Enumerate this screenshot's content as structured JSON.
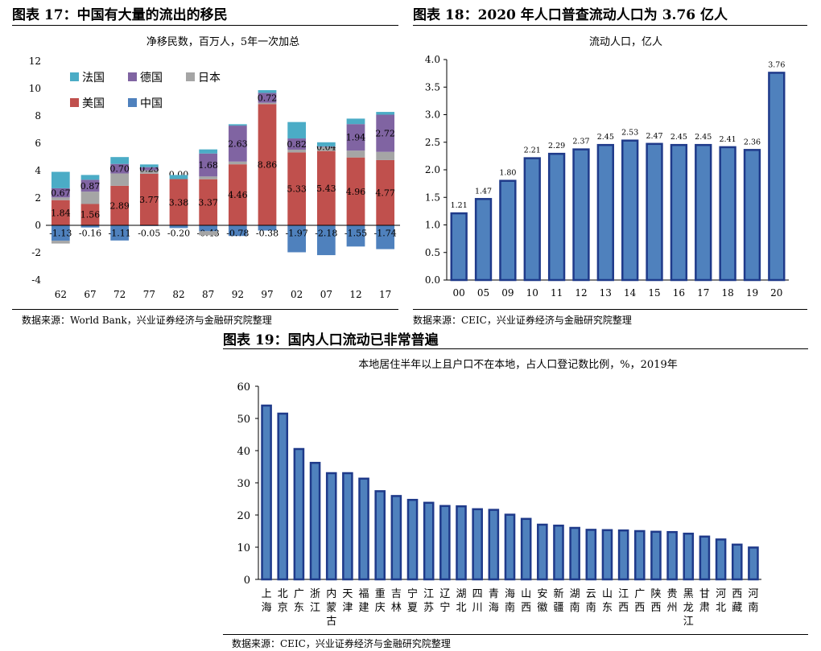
{
  "figure17": {
    "title": "图表 17：中国有大量的流出的移民",
    "source": "数据来源：World Bank，兴业证券经济与金融研究院整理"
  },
  "figure18": {
    "title": "图表 18：2020 年人口普查流动人口为 3.76 亿人",
    "source": "数据来源：CEIC，兴业证券经济与金融研究院整理"
  },
  "figure19": {
    "title": "图表 19：国内人口流动已非常普遍",
    "source": "数据来源：CEIC，兴业证券经济与金融研究院整理"
  },
  "colors": {
    "france": "#4BACC6",
    "germany": "#8064A2",
    "japan": "#A5A5A5",
    "usa": "#C0504D",
    "china": "#4F81BD",
    "bar_fill": "#4F81BD",
    "bar_edge": "#1F3A8A"
  },
  "chart_data": [
    {
      "type": "bar",
      "stacked": true,
      "title": "净移民数，百万人，5年一次加总",
      "categories": [
        "62",
        "67",
        "72",
        "77",
        "82",
        "87",
        "92",
        "97",
        "02",
        "07",
        "12",
        "17"
      ],
      "ylim": [
        -4,
        12
      ],
      "yticks": [
        -4,
        -2,
        0,
        2,
        4,
        6,
        8,
        10,
        12
      ],
      "legend_position": "top-left",
      "series": [
        {
          "name": "美国",
          "key": "usa",
          "values": [
            1.84,
            1.56,
            2.89,
            3.77,
            3.38,
            3.37,
            4.46,
            8.86,
            5.33,
            5.43,
            4.96,
            4.77
          ],
          "labels": [
            "1.84",
            "1.56",
            "2.89",
            "3.77",
            "3.38",
            "3.37",
            "4.46",
            "8.86",
            "5.33",
            "5.43",
            "4.96",
            "4.77"
          ]
        },
        {
          "name": "日本",
          "key": "japan",
          "values": [
            0.2,
            0.9,
            0.9,
            0.25,
            0.0,
            0.2,
            0.2,
            0.1,
            0.2,
            0.3,
            0.5,
            0.6
          ]
        },
        {
          "name": "德国",
          "key": "germany",
          "values": [
            0.67,
            0.87,
            0.7,
            0.23,
            0.0,
            1.68,
            2.63,
            0.72,
            0.82,
            0.04,
            1.94,
            2.72
          ],
          "labels": [
            "0.67",
            "0.87",
            "0.70",
            "0.23",
            "0.00",
            "1.68",
            "2.63",
            "0.72",
            "0.82",
            "0.04",
            "1.94",
            "2.72"
          ]
        },
        {
          "name": "法国",
          "key": "france",
          "values": [
            1.2,
            0.35,
            0.5,
            0.2,
            0.3,
            0.3,
            0.1,
            0.2,
            1.2,
            0.3,
            0.4,
            0.2
          ]
        },
        {
          "name": "中国",
          "key": "china",
          "values": [
            -1.13,
            -0.16,
            -1.11,
            -0.05,
            -0.2,
            -0.43,
            -0.78,
            -0.38,
            -1.97,
            -2.18,
            -1.55,
            -1.74
          ],
          "labels": [
            "-1.13",
            "-0.16",
            "-1.11",
            "-0.05",
            "-0.20",
            "-0.43",
            "-0.78",
            "-0.38",
            "-1.97",
            "-2.18",
            "-1.55",
            "-1.74"
          ]
        },
        {
          "name": "日本",
          "key": "japan_neg",
          "values": [
            -0.2,
            0,
            0,
            0,
            0,
            -0.3,
            0,
            0,
            0,
            0,
            0,
            0
          ]
        }
      ]
    },
    {
      "type": "bar",
      "title": "流动人口，亿人",
      "categories": [
        "00",
        "05",
        "09",
        "10",
        "11",
        "12",
        "13",
        "14",
        "15",
        "16",
        "17",
        "18",
        "19",
        "20"
      ],
      "values": [
        1.21,
        1.47,
        1.8,
        2.21,
        2.29,
        2.37,
        2.45,
        2.53,
        2.47,
        2.45,
        2.45,
        2.41,
        2.36,
        3.76
      ],
      "labels": [
        "1.21",
        "1.47",
        "1.80",
        "2.21",
        "2.29",
        "2.37",
        "2.45",
        "2.53",
        "2.47",
        "2.45",
        "2.45",
        "2.41",
        "2.36",
        "3.76"
      ],
      "ylim": [
        0,
        4
      ],
      "yticks": [
        "0.0",
        "0.5",
        "1.0",
        "1.5",
        "2.0",
        "2.5",
        "3.0",
        "3.5",
        "4.0"
      ]
    },
    {
      "type": "bar",
      "title": "本地居住半年以上且户口不在本地，占人口登记数比例，%，2019年",
      "categories": [
        "上海",
        "北京",
        "广东",
        "浙江",
        "内蒙古",
        "天津",
        "福建",
        "重庆",
        "吉林",
        "宁夏",
        "江苏",
        "辽宁",
        "湖北",
        "四川",
        "青海",
        "海南",
        "山西",
        "安徽",
        "新疆",
        "湖南",
        "云南",
        "山东",
        "江西",
        "广西",
        "陕西",
        "贵州",
        "黑龙江",
        "甘肃",
        "河北",
        "西藏",
        "河南"
      ],
      "values": [
        54,
        51.5,
        40.5,
        36.2,
        33,
        33,
        31.3,
        27.4,
        25.9,
        24.7,
        23.8,
        22.8,
        22.7,
        21.8,
        21.6,
        20.1,
        18.8,
        17,
        16.7,
        16,
        15.4,
        15.3,
        15.2,
        15,
        14.8,
        14.7,
        14.2,
        13.3,
        12.4,
        10.8,
        9.9
      ],
      "ylim": [
        0,
        60
      ],
      "yticks": [
        "0",
        "10",
        "20",
        "30",
        "40",
        "50",
        "60"
      ]
    }
  ]
}
